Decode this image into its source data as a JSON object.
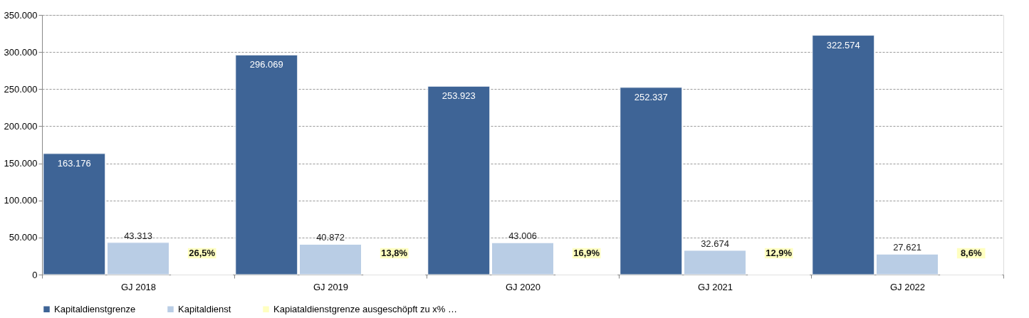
{
  "chart_data": {
    "type": "bar",
    "categories": [
      "GJ 2018",
      "GJ 2019",
      "GJ 2020",
      "GJ 2021",
      "GJ 2022"
    ],
    "series": [
      {
        "name": "Kapitaldienstgrenze",
        "color": "#3e6496",
        "values": [
          163176,
          296069,
          253923,
          252337,
          322574
        ],
        "value_labels": [
          "163.176",
          "296.069",
          "253.923",
          "252.337",
          "322.574"
        ]
      },
      {
        "name": "Kapitaldienst",
        "color": "#b9cde5",
        "values": [
          43313,
          40872,
          43006,
          32674,
          27621
        ],
        "value_labels": [
          "43.313",
          "40.872",
          "43.006",
          "32.674",
          "27.621"
        ]
      },
      {
        "name": "Kapiataldienstgrenze ausgeschöpft zu x% …",
        "color": "#ffffc0",
        "values": [
          26.5,
          13.8,
          16.9,
          12.9,
          8.6
        ],
        "value_labels": [
          "26,5%",
          "13,8%",
          "16,9%",
          "12,9%",
          "8,6%"
        ]
      }
    ],
    "ylim": [
      0,
      350000
    ],
    "yticks": [
      {
        "value": 0,
        "label": "0"
      },
      {
        "value": 50000,
        "label": "50.000"
      },
      {
        "value": 100000,
        "label": "100.000"
      },
      {
        "value": 150000,
        "label": "150.000"
      },
      {
        "value": 200000,
        "label": "200.000"
      },
      {
        "value": 250000,
        "label": "250.000"
      },
      {
        "value": 300000,
        "label": "300.000"
      },
      {
        "value": 350000,
        "label": "350.000"
      }
    ],
    "grid": "y",
    "legend": "bottom"
  }
}
